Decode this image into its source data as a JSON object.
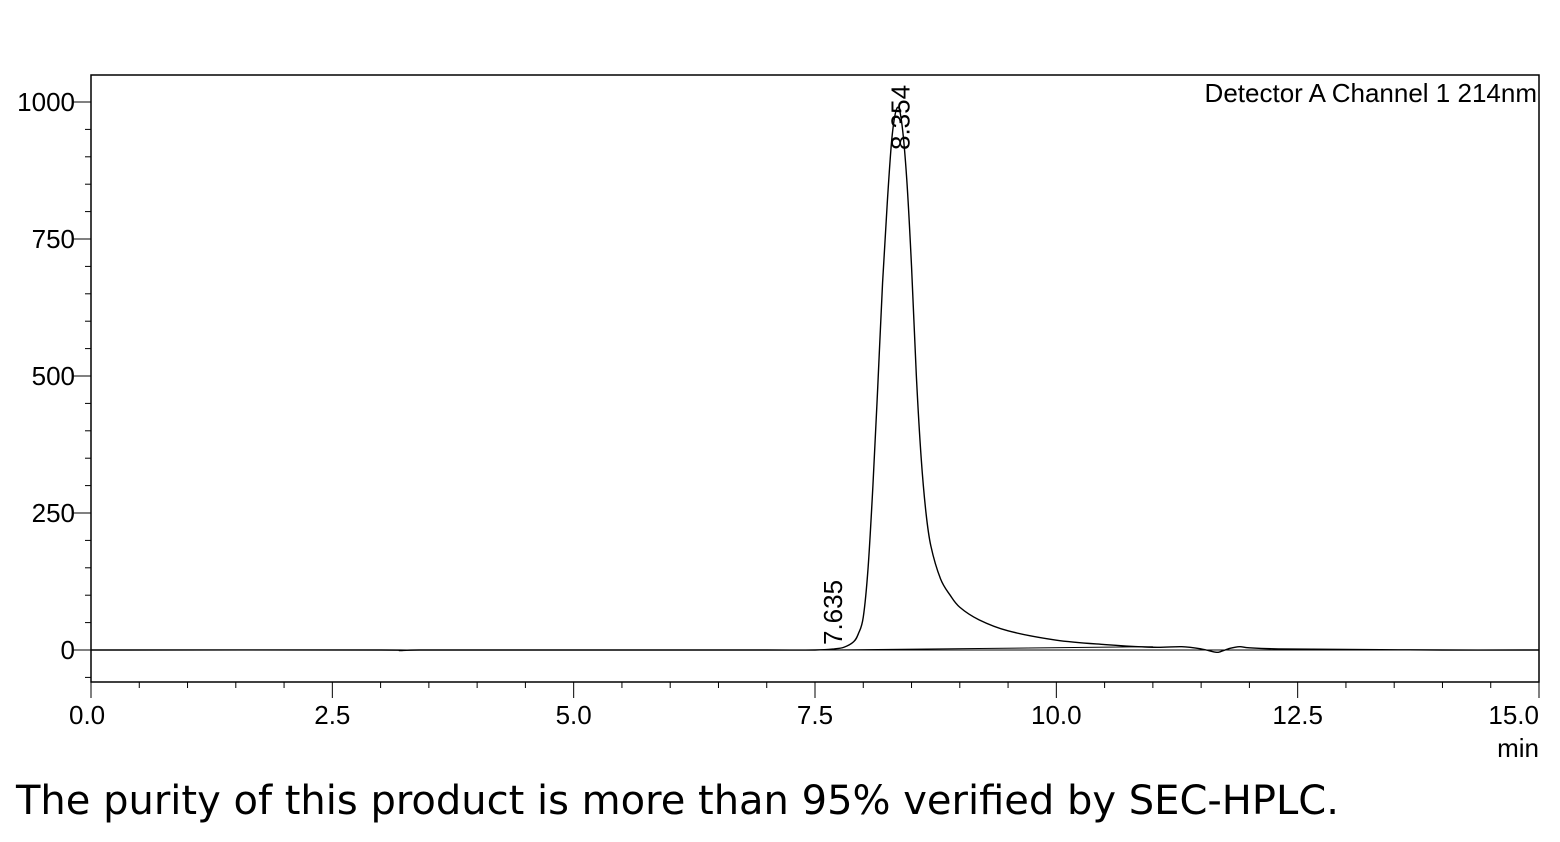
{
  "chart_data": {
    "type": "line",
    "detector_label": "Detector A Channel 1 214nm",
    "x_unit": "min",
    "xlim": [
      0.0,
      15.0
    ],
    "ylim": [
      -60,
      1050
    ],
    "x_ticks": [
      "0.0",
      "2.5",
      "5.0",
      "7.5",
      "10.0",
      "12.5",
      "15.0"
    ],
    "y_ticks": [
      "1000",
      "750",
      "500",
      "250",
      "0"
    ],
    "grid": false,
    "peak_labels": [
      {
        "text": "7.635",
        "x": 7.635,
        "y": 0
      },
      {
        "text": "8.354",
        "x": 8.354,
        "y": 990
      }
    ],
    "series": [
      {
        "x": [
          0.0,
          3.0,
          3.2,
          3.4,
          4.5,
          6.0,
          7.0,
          7.5,
          7.7,
          7.8,
          7.9,
          7.95,
          8.0,
          8.05,
          8.1,
          8.15,
          8.2,
          8.25,
          8.3,
          8.354,
          8.4,
          8.45,
          8.5,
          8.55,
          8.6,
          8.65,
          8.7,
          8.8,
          8.9,
          9.0,
          9.2,
          9.5,
          10.0,
          10.5,
          11.0,
          11.3,
          11.5,
          11.65,
          11.7,
          11.8,
          11.9,
          12.0,
          12.3,
          13.0,
          14.0,
          15.0
        ],
        "y": [
          0,
          0,
          -1,
          0,
          0,
          0,
          0,
          0,
          2,
          5,
          15,
          30,
          60,
          150,
          300,
          480,
          670,
          820,
          940,
          990,
          960,
          860,
          700,
          500,
          350,
          250,
          190,
          130,
          100,
          78,
          55,
          35,
          18,
          10,
          5,
          6,
          2,
          -4,
          -3,
          3,
          6,
          4,
          2,
          1,
          0,
          0
        ]
      },
      {
        "x": [
          7.635,
          11.0
        ],
        "y": [
          0,
          6
        ]
      }
    ]
  },
  "caption": "The purity of this product is more than 95% verified by SEC-HPLC."
}
